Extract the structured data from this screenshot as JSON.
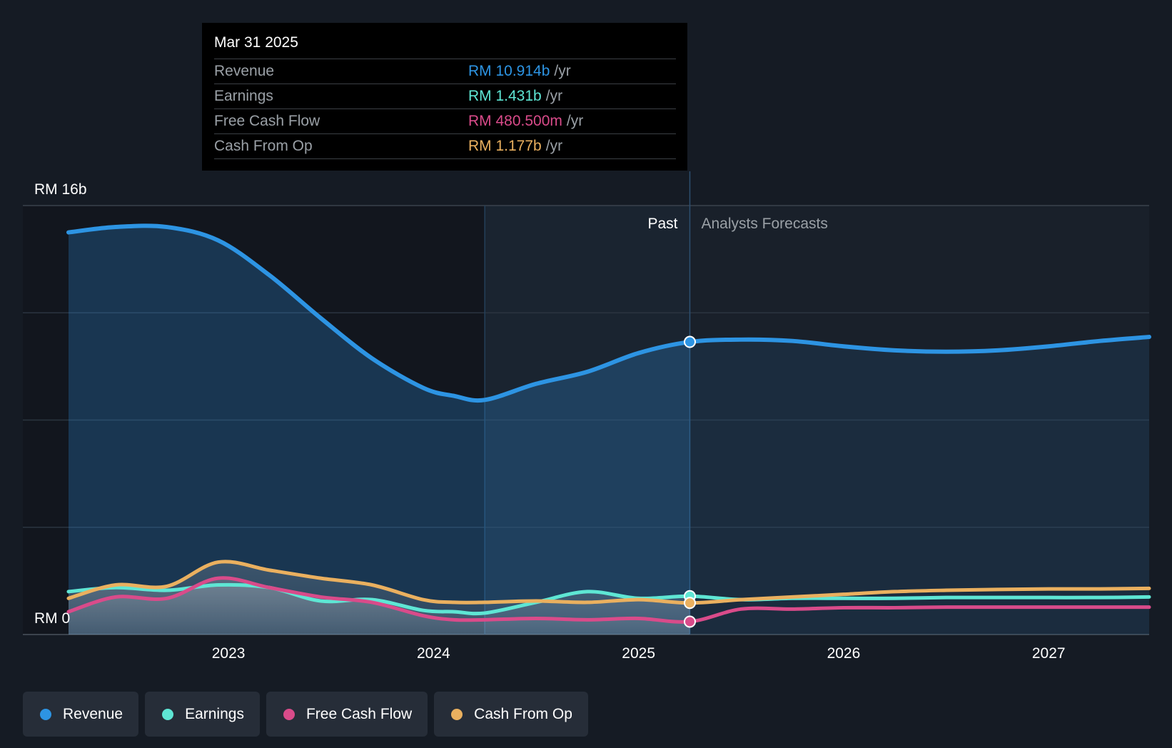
{
  "tooltip": {
    "date": "Mar 31 2025",
    "rows": [
      {
        "label": "Revenue",
        "value": "RM 10.914b",
        "unit": "/yr",
        "color": "#2d94e3"
      },
      {
        "label": "Earnings",
        "value": "RM 1.431b",
        "unit": "/yr",
        "color": "#5ee6d4"
      },
      {
        "label": "Free Cash Flow",
        "value": "RM 480.500m",
        "unit": "/yr",
        "color": "#d94b8a"
      },
      {
        "label": "Cash From Op",
        "value": "RM 1.177b",
        "unit": "/yr",
        "color": "#eab05f"
      }
    ]
  },
  "labels": {
    "past": "Past",
    "forecast": "Analysts Forecasts",
    "y_top": "RM 16b",
    "y_bottom": "RM 0"
  },
  "legend": [
    {
      "label": "Revenue",
      "color": "#2d94e3"
    },
    {
      "label": "Earnings",
      "color": "#5ee6d4"
    },
    {
      "label": "Free Cash Flow",
      "color": "#d94b8a"
    },
    {
      "label": "Cash From Op",
      "color": "#eab05f"
    }
  ],
  "chart_data": {
    "type": "line",
    "title": "",
    "xlabel": "",
    "ylabel": "",
    "ylim": [
      0,
      16
    ],
    "y_unit": "RM b",
    "x_ticks": [
      "2023",
      "2024",
      "2025",
      "2026",
      "2027"
    ],
    "tick_years": [
      2023,
      2024,
      2025,
      2026,
      2027
    ],
    "x_range": [
      2022.22,
      2027.49
    ],
    "past_end": 2025.25,
    "highlight_start": 2024.25,
    "series": [
      {
        "name": "Revenue",
        "color": "#2d94e3",
        "x": [
          2022.22,
          2022.45,
          2022.7,
          2022.95,
          2023.2,
          2023.45,
          2023.7,
          2023.95,
          2024.1,
          2024.25,
          2024.5,
          2024.75,
          2025.0,
          2025.25,
          2025.5,
          2025.75,
          2026.0,
          2026.25,
          2026.5,
          2026.75,
          2027.0,
          2027.25,
          2027.49
        ],
        "y": [
          15.0,
          15.2,
          15.2,
          14.7,
          13.4,
          11.8,
          10.3,
          9.2,
          8.9,
          8.75,
          9.35,
          9.8,
          10.5,
          10.914,
          11.0,
          10.95,
          10.75,
          10.6,
          10.55,
          10.6,
          10.75,
          10.95,
          11.1
        ]
      },
      {
        "name": "Earnings",
        "color": "#5ee6d4",
        "x": [
          2022.22,
          2022.45,
          2022.7,
          2022.95,
          2023.2,
          2023.45,
          2023.7,
          2023.95,
          2024.1,
          2024.25,
          2024.5,
          2024.75,
          2025.0,
          2025.25,
          2025.5,
          2025.75,
          2026.0,
          2026.25,
          2026.5,
          2026.75,
          2027.0,
          2027.25,
          2027.49
        ],
        "y": [
          1.6,
          1.75,
          1.65,
          1.85,
          1.75,
          1.25,
          1.3,
          0.9,
          0.85,
          0.8,
          1.2,
          1.6,
          1.35,
          1.431,
          1.3,
          1.35,
          1.35,
          1.35,
          1.38,
          1.38,
          1.38,
          1.38,
          1.4
        ]
      },
      {
        "name": "Free Cash Flow",
        "color": "#d94b8a",
        "x": [
          2022.22,
          2022.45,
          2022.7,
          2022.95,
          2023.2,
          2023.45,
          2023.7,
          2023.95,
          2024.1,
          2024.25,
          2024.5,
          2024.75,
          2025.0,
          2025.25,
          2025.5,
          2025.75,
          2026.0,
          2026.25,
          2026.5,
          2026.75,
          2027.0,
          2027.25,
          2027.49
        ],
        "y": [
          0.85,
          1.4,
          1.35,
          2.1,
          1.75,
          1.4,
          1.2,
          0.7,
          0.55,
          0.55,
          0.6,
          0.55,
          0.6,
          0.4805,
          0.95,
          0.95,
          1.0,
          1.0,
          1.02,
          1.02,
          1.02,
          1.02,
          1.02
        ]
      },
      {
        "name": "Cash From Op",
        "color": "#eab05f",
        "x": [
          2022.22,
          2022.45,
          2022.7,
          2022.95,
          2023.2,
          2023.45,
          2023.7,
          2023.95,
          2024.1,
          2024.25,
          2024.5,
          2024.75,
          2025.0,
          2025.25,
          2025.5,
          2025.75,
          2026.0,
          2026.25,
          2026.5,
          2026.75,
          2027.0,
          2027.25,
          2027.49
        ],
        "y": [
          1.35,
          1.85,
          1.8,
          2.7,
          2.4,
          2.1,
          1.85,
          1.3,
          1.2,
          1.2,
          1.25,
          1.2,
          1.3,
          1.177,
          1.3,
          1.4,
          1.5,
          1.6,
          1.65,
          1.68,
          1.7,
          1.7,
          1.72
        ]
      }
    ]
  }
}
